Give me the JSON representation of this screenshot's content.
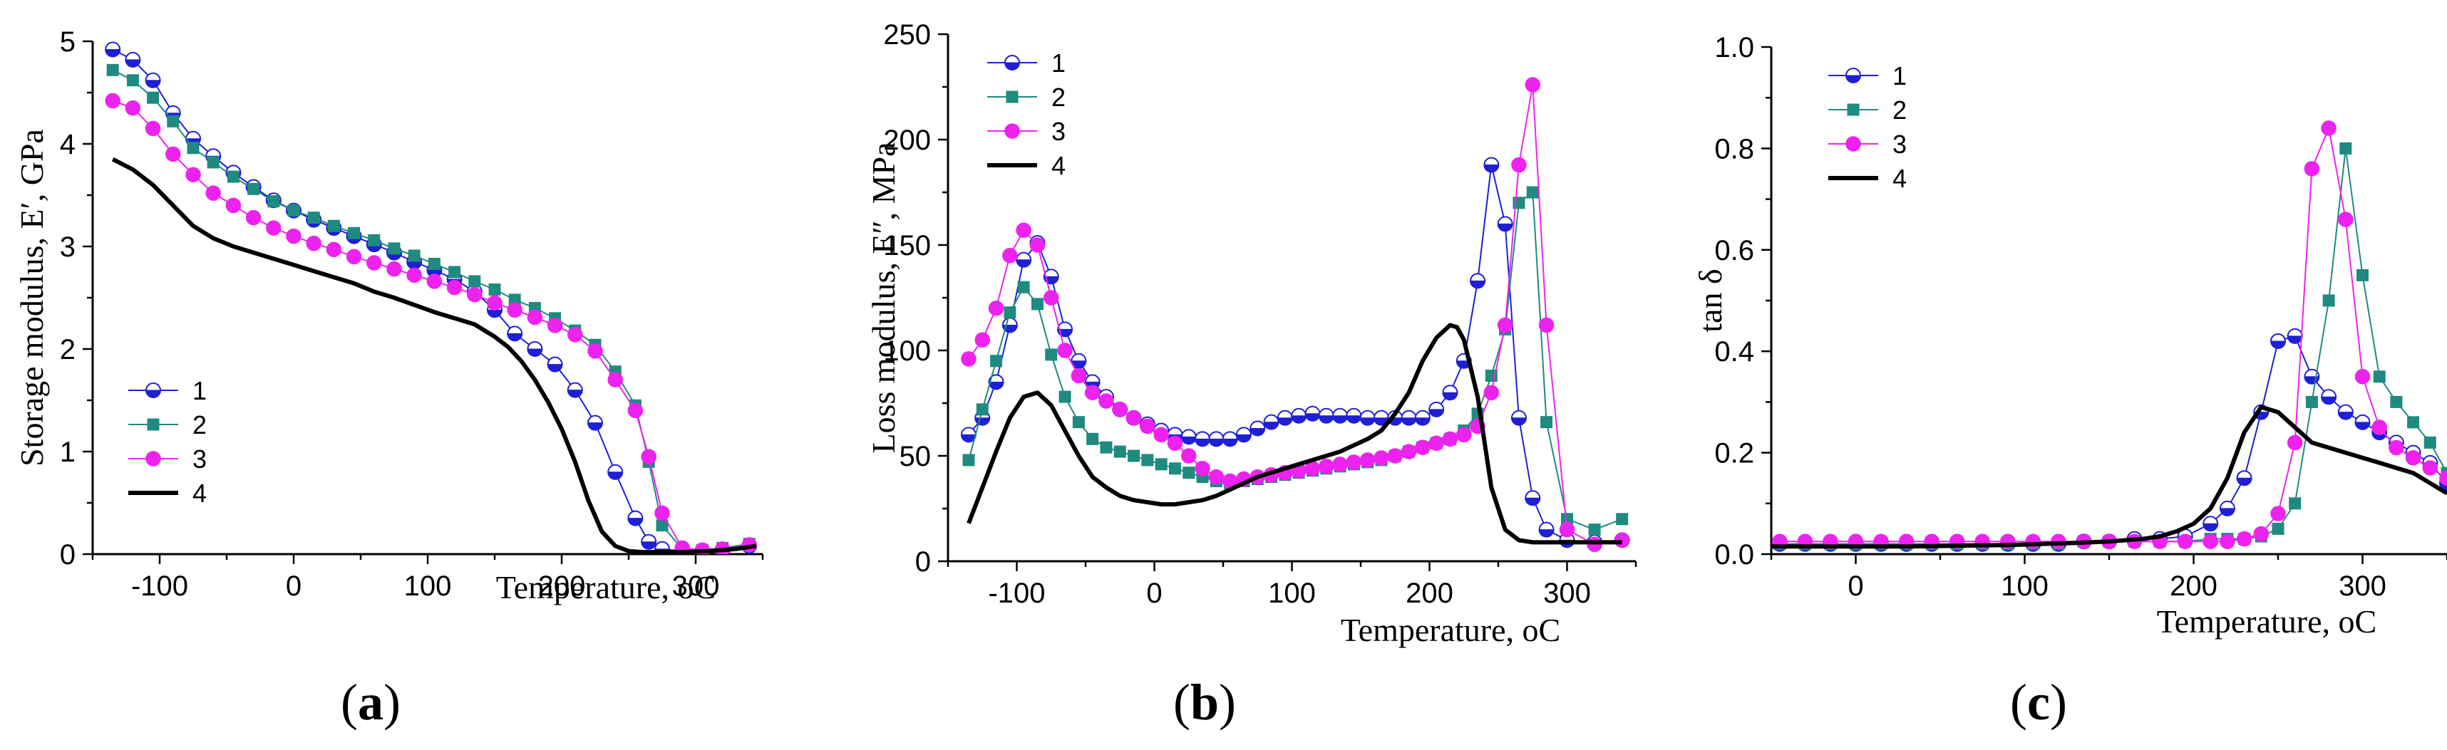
{
  "chart_data": [
    {
      "type": "line",
      "panel_label": "a",
      "xlabel": "Temperature, oC",
      "ylabel": "Storage modulus, E′, GPa",
      "xlim": [
        -150,
        350
      ],
      "ylim": [
        0,
        5
      ],
      "xticks": [
        -100,
        0,
        100,
        200,
        300
      ],
      "yticks": [
        0,
        1,
        2,
        3,
        4,
        5
      ],
      "legend_position": "lower-left",
      "series": [
        {
          "name": "1",
          "color": "#1f1fd6",
          "marker": "half-circle",
          "x": [
            -135,
            -120,
            -105,
            -90,
            -75,
            -60,
            -45,
            -30,
            -15,
            0,
            15,
            30,
            45,
            60,
            75,
            90,
            105,
            120,
            135,
            150,
            165,
            180,
            195,
            210,
            225,
            240,
            255,
            265,
            275,
            290,
            305,
            320,
            340
          ],
          "y": [
            4.92,
            4.82,
            4.62,
            4.3,
            4.05,
            3.88,
            3.72,
            3.58,
            3.45,
            3.35,
            3.26,
            3.18,
            3.1,
            3.02,
            2.94,
            2.85,
            2.77,
            2.68,
            2.56,
            2.38,
            2.15,
            2.0,
            1.85,
            1.6,
            1.28,
            0.8,
            0.35,
            0.12,
            0.05,
            0.03,
            0.03,
            0.04,
            0.08
          ]
        },
        {
          "name": "2",
          "color": "#1f8a80",
          "marker": "square",
          "x": [
            -135,
            -120,
            -105,
            -90,
            -75,
            -60,
            -45,
            -30,
            -15,
            0,
            15,
            30,
            45,
            60,
            75,
            90,
            105,
            120,
            135,
            150,
            165,
            180,
            195,
            210,
            225,
            240,
            255,
            265,
            275,
            290,
            305,
            320,
            340
          ],
          "y": [
            4.72,
            4.62,
            4.45,
            4.22,
            3.96,
            3.82,
            3.68,
            3.56,
            3.44,
            3.35,
            3.28,
            3.2,
            3.13,
            3.06,
            2.98,
            2.91,
            2.83,
            2.75,
            2.66,
            2.58,
            2.48,
            2.4,
            2.3,
            2.18,
            2.04,
            1.78,
            1.45,
            0.9,
            0.28,
            0.05,
            0.04,
            0.06,
            0.1
          ]
        },
        {
          "name": "3",
          "color": "#ee22ee",
          "marker": "circle",
          "x": [
            -135,
            -120,
            -105,
            -90,
            -75,
            -60,
            -45,
            -30,
            -15,
            0,
            15,
            30,
            45,
            60,
            75,
            90,
            105,
            120,
            135,
            150,
            165,
            180,
            195,
            210,
            225,
            240,
            255,
            265,
            275,
            290,
            305,
            320,
            340
          ],
          "y": [
            4.42,
            4.35,
            4.15,
            3.9,
            3.7,
            3.52,
            3.4,
            3.28,
            3.18,
            3.1,
            3.03,
            2.97,
            2.9,
            2.84,
            2.78,
            2.72,
            2.66,
            2.6,
            2.53,
            2.45,
            2.38,
            2.31,
            2.23,
            2.14,
            1.98,
            1.7,
            1.4,
            0.95,
            0.4,
            0.06,
            0.04,
            0.05,
            0.09
          ]
        },
        {
          "name": "4",
          "color": "#000000",
          "marker": "none",
          "x": [
            -135,
            -120,
            -105,
            -90,
            -75,
            -60,
            -45,
            -30,
            -15,
            0,
            15,
            30,
            45,
            60,
            75,
            90,
            105,
            120,
            135,
            150,
            160,
            170,
            180,
            190,
            200,
            210,
            220,
            230,
            240,
            250,
            260,
            270,
            290,
            310,
            330,
            345
          ],
          "y": [
            3.85,
            3.75,
            3.6,
            3.4,
            3.2,
            3.08,
            3.0,
            2.94,
            2.88,
            2.82,
            2.76,
            2.7,
            2.64,
            2.56,
            2.5,
            2.43,
            2.36,
            2.3,
            2.24,
            2.12,
            2.02,
            1.88,
            1.7,
            1.48,
            1.22,
            0.9,
            0.52,
            0.22,
            0.08,
            0.03,
            0.02,
            0.02,
            0.02,
            0.03,
            0.05,
            0.08
          ]
        }
      ]
    },
    {
      "type": "line",
      "panel_label": "b",
      "xlabel": "Temperature, oC",
      "ylabel": "Loss modulus, E″, MPa",
      "xlim": [
        -150,
        350
      ],
      "ylim": [
        0,
        250
      ],
      "xticks": [
        -100,
        0,
        100,
        200,
        300
      ],
      "yticks": [
        0,
        50,
        100,
        150,
        200,
        250
      ],
      "legend_position": "top-left",
      "series": [
        {
          "name": "1",
          "color": "#1f1fd6",
          "marker": "half-circle",
          "x": [
            -135,
            -125,
            -115,
            -105,
            -95,
            -85,
            -75,
            -65,
            -55,
            -45,
            -35,
            -25,
            -15,
            -5,
            5,
            15,
            25,
            35,
            45,
            55,
            65,
            75,
            85,
            95,
            105,
            115,
            125,
            135,
            145,
            155,
            165,
            175,
            185,
            195,
            205,
            215,
            225,
            235,
            245,
            255,
            265,
            275,
            285,
            300,
            320,
            340
          ],
          "y": [
            60,
            68,
            85,
            112,
            143,
            151,
            135,
            110,
            95,
            85,
            78,
            72,
            68,
            65,
            62,
            60,
            59,
            58,
            58,
            58,
            60,
            63,
            66,
            68,
            69,
            70,
            69,
            69,
            69,
            68,
            68,
            68,
            68,
            68,
            72,
            80,
            95,
            133,
            188,
            160,
            68,
            30,
            15,
            10,
            9,
            10
          ]
        },
        {
          "name": "2",
          "color": "#1f8a80",
          "marker": "square",
          "x": [
            -135,
            -125,
            -115,
            -105,
            -95,
            -85,
            -75,
            -65,
            -55,
            -45,
            -35,
            -25,
            -15,
            -5,
            5,
            15,
            25,
            35,
            45,
            55,
            65,
            75,
            85,
            95,
            105,
            115,
            125,
            135,
            145,
            155,
            165,
            175,
            185,
            195,
            205,
            215,
            225,
            235,
            245,
            255,
            265,
            275,
            285,
            300,
            320,
            340
          ],
          "y": [
            48,
            72,
            95,
            118,
            130,
            122,
            98,
            78,
            66,
            58,
            54,
            52,
            50,
            48,
            46,
            44,
            42,
            40,
            38,
            37,
            38,
            39,
            40,
            41,
            42,
            43,
            44,
            45,
            46,
            47,
            48,
            50,
            52,
            54,
            56,
            58,
            62,
            70,
            88,
            110,
            170,
            175,
            66,
            20,
            15,
            20
          ]
        },
        {
          "name": "3",
          "color": "#ee22ee",
          "marker": "circle",
          "x": [
            -135,
            -125,
            -115,
            -105,
            -95,
            -85,
            -75,
            -65,
            -55,
            -45,
            -35,
            -25,
            -15,
            -5,
            5,
            15,
            25,
            35,
            45,
            55,
            65,
            75,
            85,
            95,
            105,
            115,
            125,
            135,
            145,
            155,
            165,
            175,
            185,
            195,
            205,
            215,
            225,
            235,
            245,
            255,
            265,
            275,
            285,
            300,
            320,
            340
          ],
          "y": [
            96,
            105,
            120,
            145,
            157,
            150,
            125,
            100,
            88,
            80,
            76,
            72,
            68,
            64,
            60,
            56,
            50,
            44,
            40,
            38,
            39,
            40,
            41,
            42,
            43,
            44,
            45,
            46,
            47,
            48,
            49,
            50,
            52,
            54,
            56,
            58,
            60,
            64,
            80,
            112,
            188,
            226,
            112,
            15,
            8,
            10
          ]
        },
        {
          "name": "4",
          "color": "#000000",
          "marker": "none",
          "x": [
            -135,
            -125,
            -115,
            -105,
            -95,
            -85,
            -75,
            -65,
            -55,
            -45,
            -35,
            -25,
            -15,
            -5,
            5,
            15,
            25,
            35,
            45,
            55,
            65,
            75,
            85,
            95,
            105,
            115,
            125,
            135,
            145,
            155,
            165,
            175,
            185,
            195,
            205,
            215,
            220,
            225,
            235,
            245,
            255,
            265,
            275,
            285,
            300,
            320,
            340
          ],
          "y": [
            18,
            35,
            52,
            68,
            78,
            80,
            74,
            62,
            50,
            40,
            35,
            31,
            29,
            28,
            27,
            27,
            28,
            29,
            31,
            34,
            37,
            40,
            42,
            44,
            46,
            48,
            50,
            52,
            55,
            58,
            62,
            70,
            80,
            95,
            106,
            112,
            111,
            105,
            78,
            35,
            15,
            10,
            9,
            9,
            9,
            9,
            9
          ]
        }
      ]
    },
    {
      "type": "line",
      "panel_label": "c",
      "xlabel": "Temperature, oC",
      "ylabel": "tan δ",
      "xlim": [
        -50,
        350
      ],
      "ylim": [
        0,
        1.0
      ],
      "xticks": [
        0,
        100,
        200,
        300
      ],
      "yticks": [
        0.0,
        0.2,
        0.4,
        0.6,
        0.8,
        1.0
      ],
      "legend_position": "top-left",
      "series": [
        {
          "name": "1",
          "color": "#1f1fd6",
          "marker": "half-circle",
          "x": [
            -45,
            -30,
            -15,
            0,
            15,
            30,
            45,
            60,
            75,
            90,
            105,
            120,
            135,
            150,
            165,
            180,
            195,
            210,
            220,
            230,
            240,
            250,
            260,
            270,
            280,
            290,
            300,
            310,
            320,
            330,
            340,
            350
          ],
          "y": [
            0.02,
            0.02,
            0.02,
            0.02,
            0.02,
            0.02,
            0.02,
            0.02,
            0.02,
            0.02,
            0.02,
            0.02,
            0.025,
            0.025,
            0.03,
            0.03,
            0.035,
            0.06,
            0.09,
            0.15,
            0.28,
            0.42,
            0.43,
            0.35,
            0.31,
            0.28,
            0.26,
            0.24,
            0.22,
            0.2,
            0.18,
            0.14
          ]
        },
        {
          "name": "2",
          "color": "#1f8a80",
          "marker": "square",
          "x": [
            -45,
            -30,
            -15,
            0,
            15,
            30,
            45,
            60,
            75,
            90,
            105,
            120,
            135,
            150,
            165,
            180,
            195,
            210,
            220,
            230,
            240,
            250,
            260,
            270,
            280,
            290,
            300,
            310,
            320,
            330,
            340,
            350
          ],
          "y": [
            0.02,
            0.02,
            0.02,
            0.02,
            0.02,
            0.02,
            0.02,
            0.02,
            0.02,
            0.02,
            0.02,
            0.02,
            0.025,
            0.025,
            0.025,
            0.025,
            0.025,
            0.03,
            0.03,
            0.03,
            0.035,
            0.05,
            0.1,
            0.3,
            0.5,
            0.8,
            0.55,
            0.35,
            0.3,
            0.26,
            0.22,
            0.16
          ]
        },
        {
          "name": "3",
          "color": "#ee22ee",
          "marker": "circle",
          "x": [
            -45,
            -30,
            -15,
            0,
            15,
            30,
            45,
            60,
            75,
            90,
            105,
            120,
            135,
            150,
            165,
            180,
            195,
            210,
            220,
            230,
            240,
            250,
            260,
            270,
            280,
            290,
            300,
            310,
            320,
            330,
            340,
            350
          ],
          "y": [
            0.025,
            0.025,
            0.025,
            0.025,
            0.025,
            0.025,
            0.025,
            0.025,
            0.025,
            0.025,
            0.025,
            0.025,
            0.025,
            0.025,
            0.025,
            0.025,
            0.025,
            0.025,
            0.025,
            0.03,
            0.04,
            0.08,
            0.22,
            0.76,
            0.84,
            0.66,
            0.35,
            0.25,
            0.21,
            0.19,
            0.17,
            0.15
          ]
        },
        {
          "name": "4",
          "color": "#000000",
          "marker": "none",
          "x": [
            -50,
            -30,
            -10,
            10,
            30,
            50,
            70,
            90,
            110,
            130,
            150,
            170,
            180,
            190,
            200,
            210,
            220,
            230,
            240,
            250,
            260,
            270,
            280,
            290,
            300,
            310,
            320,
            330,
            340,
            350
          ],
          "y": [
            0.015,
            0.015,
            0.015,
            0.015,
            0.015,
            0.016,
            0.017,
            0.018,
            0.02,
            0.022,
            0.025,
            0.03,
            0.035,
            0.045,
            0.06,
            0.09,
            0.15,
            0.24,
            0.29,
            0.28,
            0.25,
            0.22,
            0.21,
            0.2,
            0.19,
            0.18,
            0.17,
            0.16,
            0.14,
            0.12
          ]
        }
      ]
    }
  ]
}
